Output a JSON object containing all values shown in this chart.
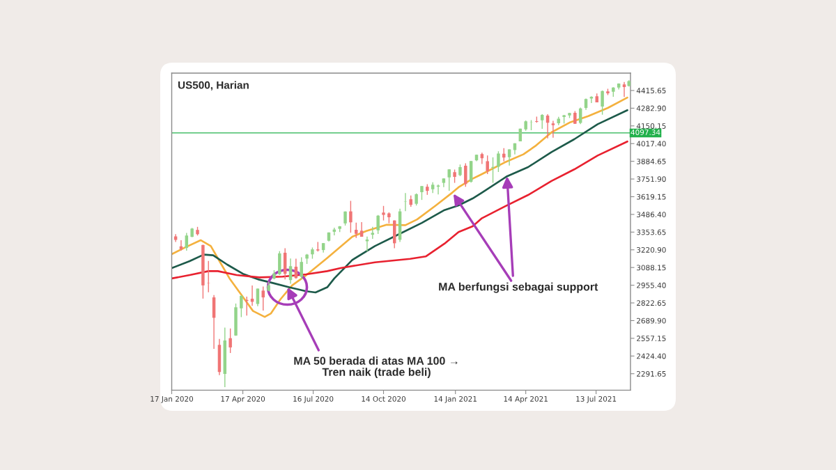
{
  "chart_data": {
    "type": "candlestick",
    "title": "US500, Harian",
    "x": [
      "2020-01-22",
      "2020-01-29",
      "2020-02-05",
      "2020-02-12",
      "2020-02-19",
      "2020-02-26",
      "2020-03-04",
      "2020-03-11",
      "2020-03-18",
      "2020-03-25",
      "2020-04-01",
      "2020-04-08",
      "2020-04-15",
      "2020-04-22",
      "2020-04-29",
      "2020-05-06",
      "2020-05-13",
      "2020-05-20",
      "2020-05-27",
      "2020-06-03",
      "2020-06-10",
      "2020-06-17",
      "2020-06-24",
      "2020-07-01",
      "2020-07-08",
      "2020-07-15",
      "2020-07-22",
      "2020-07-29",
      "2020-08-05",
      "2020-08-12",
      "2020-08-19",
      "2020-08-26",
      "2020-09-02",
      "2020-09-09",
      "2020-09-16",
      "2020-09-23",
      "2020-09-30",
      "2020-10-07",
      "2020-10-14",
      "2020-10-21",
      "2020-10-28",
      "2020-11-04",
      "2020-11-11",
      "2020-11-18",
      "2020-11-25",
      "2020-12-02",
      "2020-12-09",
      "2020-12-16",
      "2020-12-23",
      "2020-12-30",
      "2021-01-06",
      "2021-01-13",
      "2021-01-20",
      "2021-01-27",
      "2021-02-03",
      "2021-02-10",
      "2021-02-17",
      "2021-02-24",
      "2021-03-03",
      "2021-03-10",
      "2021-03-17",
      "2021-03-24",
      "2021-03-31",
      "2021-04-07",
      "2021-04-14",
      "2021-04-21",
      "2021-04-28",
      "2021-05-05",
      "2021-05-12",
      "2021-05-19",
      "2021-05-26",
      "2021-06-02",
      "2021-06-09",
      "2021-06-16",
      "2021-06-23",
      "2021-06-30",
      "2021-07-07",
      "2021-07-14",
      "2021-07-21",
      "2021-07-28",
      "2021-08-04",
      "2021-08-11",
      "2021-08-18",
      "2021-08-24"
    ],
    "ohlc": [
      [
        3321,
        3338,
        3280,
        3295
      ],
      [
        3247,
        3293,
        3214,
        3226
      ],
      [
        3235,
        3347,
        3214,
        3328
      ],
      [
        3318,
        3385,
        3316,
        3380
      ],
      [
        3370,
        3393,
        3328,
        3338
      ],
      [
        3257,
        3259,
        2855,
        2954
      ],
      [
        2974,
        3137,
        2902,
        2972
      ],
      [
        2864,
        2882,
        2478,
        2711
      ],
      [
        2508,
        2553,
        2281,
        2305
      ],
      [
        2290,
        2637,
        2191,
        2541
      ],
      [
        2558,
        2631,
        2447,
        2489
      ],
      [
        2578,
        2818,
        2576,
        2790
      ],
      [
        2782,
        2880,
        2716,
        2875
      ],
      [
        2845,
        2870,
        2728,
        2837
      ],
      [
        2854,
        2954,
        2801,
        2831
      ],
      [
        2815,
        2930,
        2798,
        2930
      ],
      [
        2915,
        2945,
        2766,
        2864
      ],
      [
        2914,
        2981,
        2910,
        2955
      ],
      [
        3005,
        3068,
        2999,
        3044
      ],
      [
        3038,
        3211,
        3032,
        3194
      ],
      [
        3199,
        3233,
        2999,
        3041
      ],
      [
        2994,
        3156,
        2966,
        3098
      ],
      [
        3094,
        3155,
        3004,
        3009
      ],
      [
        3018,
        3165,
        2999,
        3130
      ],
      [
        3155,
        3190,
        3115,
        3185
      ],
      [
        3187,
        3238,
        3154,
        3224
      ],
      [
        3224,
        3280,
        3208,
        3216
      ],
      [
        3219,
        3272,
        3200,
        3271
      ],
      [
        3289,
        3352,
        3284,
        3351
      ],
      [
        3356,
        3387,
        3329,
        3373
      ],
      [
        3378,
        3399,
        3354,
        3397
      ],
      [
        3419,
        3509,
        3403,
        3508
      ],
      [
        3509,
        3588,
        3349,
        3427
      ],
      [
        3371,
        3425,
        3310,
        3341
      ],
      [
        3364,
        3428,
        3319,
        3319
      ],
      [
        3285,
        3320,
        3209,
        3298
      ],
      [
        3334,
        3393,
        3303,
        3348
      ],
      [
        3367,
        3482,
        3340,
        3477
      ],
      [
        3500,
        3550,
        3441,
        3483
      ],
      [
        3494,
        3502,
        3420,
        3465
      ],
      [
        3441,
        3441,
        3233,
        3270
      ],
      [
        3296,
        3529,
        3280,
        3509
      ],
      [
        3583,
        3646,
        3511,
        3585
      ],
      [
        3600,
        3628,
        3543,
        3558
      ],
      [
        3566,
        3644,
        3553,
        3638
      ],
      [
        3653,
        3699,
        3595,
        3699
      ],
      [
        3694,
        3713,
        3633,
        3663
      ],
      [
        3675,
        3727,
        3647,
        3709
      ],
      [
        3694,
        3711,
        3636,
        3703
      ],
      [
        3723,
        3756,
        3691,
        3756
      ],
      [
        3764,
        3826,
        3663,
        3824
      ],
      [
        3803,
        3823,
        3723,
        3768
      ],
      [
        3781,
        3861,
        3773,
        3841
      ],
      [
        3851,
        3870,
        3694,
        3714
      ],
      [
        3731,
        3887,
        3725,
        3887
      ],
      [
        3892,
        3935,
        3885,
        3934
      ],
      [
        3939,
        3950,
        3865,
        3907
      ],
      [
        3885,
        3929,
        3789,
        3811
      ],
      [
        3836,
        3914,
        3723,
        3842
      ],
      [
        3844,
        3960,
        3805,
        3943
      ],
      [
        3942,
        3983,
        3884,
        3913
      ],
      [
        3916,
        3974,
        3853,
        3974
      ],
      [
        3969,
        4020,
        3937,
        4020
      ],
      [
        4034,
        4129,
        4034,
        4129
      ],
      [
        4124,
        4191,
        4114,
        4185
      ],
      [
        4179,
        4194,
        4118,
        4180
      ],
      [
        4186,
        4219,
        4174,
        4181
      ],
      [
        4192,
        4238,
        4128,
        4233
      ],
      [
        4228,
        4238,
        4057,
        4174
      ],
      [
        4169,
        4188,
        4062,
        4156
      ],
      [
        4170,
        4218,
        4156,
        4204
      ],
      [
        4217,
        4233,
        4168,
        4230
      ],
      [
        4229,
        4249,
        4209,
        4247
      ],
      [
        4248,
        4262,
        4165,
        4166
      ],
      [
        4173,
        4287,
        4164,
        4281
      ],
      [
        4285,
        4355,
        4270,
        4352
      ],
      [
        4356,
        4372,
        4321,
        4369
      ],
      [
        4372,
        4393,
        4327,
        4327
      ],
      [
        4296,
        4415,
        4234,
        4412
      ],
      [
        4409,
        4429,
        4382,
        4395
      ],
      [
        4406,
        4440,
        4368,
        4437
      ],
      [
        4437,
        4469,
        4423,
        4468
      ],
      [
        4461,
        4480,
        4367,
        4442
      ],
      [
        4450,
        4492,
        4446,
        4486
      ]
    ],
    "colors": [
      "#f07575",
      "#f07575",
      "#93d48a",
      "#93d48a",
      "#f07575",
      "#f07575",
      "#f07575",
      "#f07575",
      "#f07575",
      "#93d48a",
      "#f07575",
      "#93d48a",
      "#93d48a",
      "#f07575",
      "#f07575",
      "#93d48a",
      "#f07575",
      "#93d48a",
      "#93d48a",
      "#93d48a",
      "#f07575",
      "#93d48a",
      "#f07575",
      "#93d48a",
      "#93d48a",
      "#93d48a",
      "#f07575",
      "#93d48a",
      "#93d48a",
      "#93d48a",
      "#93d48a",
      "#93d48a",
      "#f07575",
      "#f07575",
      "#f07575",
      "#93d48a",
      "#93d48a",
      "#93d48a",
      "#f07575",
      "#f07575",
      "#f07575",
      "#93d48a",
      "#93d48a",
      "#f07575",
      "#93d48a",
      "#93d48a",
      "#f07575",
      "#93d48a",
      "#93d48a",
      "#93d48a",
      "#93d48a",
      "#f07575",
      "#93d48a",
      "#f07575",
      "#93d48a",
      "#93d48a",
      "#f07575",
      "#f07575",
      "#93d48a",
      "#93d48a",
      "#f07575",
      "#93d48a",
      "#93d48a",
      "#93d48a",
      "#93d48a",
      "#93d48a",
      "#f07575",
      "#93d48a",
      "#f07575",
      "#f07575",
      "#93d48a",
      "#93d48a",
      "#93d48a",
      "#f07575",
      "#93d48a",
      "#93d48a",
      "#93d48a",
      "#f07575",
      "#93d48a",
      "#f07575",
      "#93d48a",
      "#93d48a",
      "#f07575",
      "#93d48a"
    ],
    "series": [
      {
        "type": "line",
        "color": "#f4b13e",
        "x": [
          "2020-01-17",
          "2020-02-04",
          "2020-02-23",
          "2020-03-07",
          "2020-03-19",
          "2020-03-31",
          "2020-04-15",
          "2020-04-30",
          "2020-05-15",
          "2020-05-23",
          "2020-06-04",
          "2020-06-19",
          "2020-07-07",
          "2020-08-03",
          "2020-09-04",
          "2020-09-22",
          "2020-10-18",
          "2020-11-11",
          "2020-11-26",
          "2020-12-20",
          "2021-01-10",
          "2021-01-18",
          "2021-02-05",
          "2021-02-17",
          "2021-03-18",
          "2021-04-11",
          "2021-04-26",
          "2021-05-17",
          "2021-06-09",
          "2021-07-03",
          "2021-07-28",
          "2021-08-22"
        ],
        "values": [
          3188,
          3241,
          3293,
          3249,
          3127,
          3006,
          2884,
          2762,
          2718,
          2744,
          2849,
          2954,
          3030,
          3160,
          3319,
          3362,
          3409,
          3406,
          3449,
          3554,
          3650,
          3690,
          3754,
          3789,
          3876,
          3937,
          3998,
          4102,
          4175,
          4224,
          4285,
          4363
        ]
      },
      {
        "type": "line",
        "color": "#1d5a4a",
        "x": [
          "2020-01-17",
          "2020-02-09",
          "2020-02-27",
          "2020-03-10",
          "2020-03-28",
          "2020-04-17",
          "2020-05-08",
          "2020-05-26",
          "2020-06-16",
          "2020-07-07",
          "2020-07-19",
          "2020-08-03",
          "2020-08-12",
          "2020-09-04",
          "2020-10-03",
          "2020-11-02",
          "2020-12-02",
          "2020-12-31",
          "2021-01-18",
          "2021-02-05",
          "2021-02-17",
          "2021-03-21",
          "2021-04-17",
          "2021-05-17",
          "2021-06-15",
          "2021-07-15",
          "2021-08-22"
        ],
        "values": [
          3084,
          3136,
          3185,
          3180,
          3110,
          3041,
          2997,
          2971,
          2939,
          2910,
          2901,
          2940,
          3006,
          3145,
          3249,
          3336,
          3423,
          3519,
          3554,
          3606,
          3650,
          3772,
          3841,
          3954,
          4050,
          4163,
          4268
        ]
      },
      {
        "type": "line",
        "color": "#e8212f",
        "x": [
          "2020-01-17",
          "2020-02-09",
          "2020-03-04",
          "2020-03-16",
          "2020-04-09",
          "2020-05-08",
          "2020-06-07",
          "2020-07-07",
          "2020-08-03",
          "2020-08-20",
          "2020-10-03",
          "2020-11-17",
          "2020-12-07",
          "2020-12-31",
          "2021-01-18",
          "2021-02-05",
          "2021-02-17",
          "2021-03-18",
          "2021-04-17",
          "2021-05-17",
          "2021-06-15",
          "2021-07-15",
          "2021-08-22"
        ],
        "values": [
          3006,
          3032,
          3061,
          3061,
          3032,
          3014,
          3020,
          3037,
          3061,
          3084,
          3127,
          3153,
          3171,
          3267,
          3354,
          3397,
          3458,
          3545,
          3632,
          3737,
          3824,
          3928,
          4033
        ]
      }
    ],
    "xlim": [
      "2020-01-17",
      "2021-08-26"
    ],
    "xticks": [
      {
        "value": "2020-01-17",
        "label": "17 Jan 2020"
      },
      {
        "value": "2020-04-17",
        "label": "17 Apr 2020"
      },
      {
        "value": "2020-07-16",
        "label": "16 Jul 2020"
      },
      {
        "value": "2020-10-14",
        "label": "14 Oct 2020"
      },
      {
        "value": "2021-01-14",
        "label": "14 Jan 2021"
      },
      {
        "value": "2021-04-14",
        "label": "14 Apr 2021"
      },
      {
        "value": "2021-07-13",
        "label": "13 Jul 2021"
      }
    ],
    "ylim": [
      2168,
      4546
    ],
    "yticks": [
      4415.65,
      {
        "value": 4282.9,
        "label": "4282.90"
      },
      4150.15,
      {
        "value": 4017.4,
        "label": "4017.40"
      },
      3884.65,
      {
        "value": 3751.9,
        "label": "3751.90"
      },
      3619.15,
      {
        "value": 3486.4,
        "label": "3486.40"
      },
      3353.65,
      {
        "value": 3220.9,
        "label": "3220.90"
      },
      3088.15,
      {
        "value": 2955.4,
        "label": "2955.40"
      },
      2822.65,
      {
        "value": 2689.9,
        "label": "2689.90"
      },
      2557.15,
      {
        "value": 2424.4,
        "label": "2424.40"
      },
      2291.65
    ],
    "ref_lines": [
      {
        "axis": "y",
        "value": 4097.34,
        "label": "4097.34",
        "color": "#22b14c"
      }
    ],
    "annotations": [
      {
        "text": "MA 50 berada di atas MA 100 →\nTren naik (trade beli)",
        "x": "2020-06-13",
        "y": 2940
      },
      {
        "text": "MA berfungsi sebagai support",
        "x": "2021-03-21",
        "y": 3772
      }
    ]
  }
}
